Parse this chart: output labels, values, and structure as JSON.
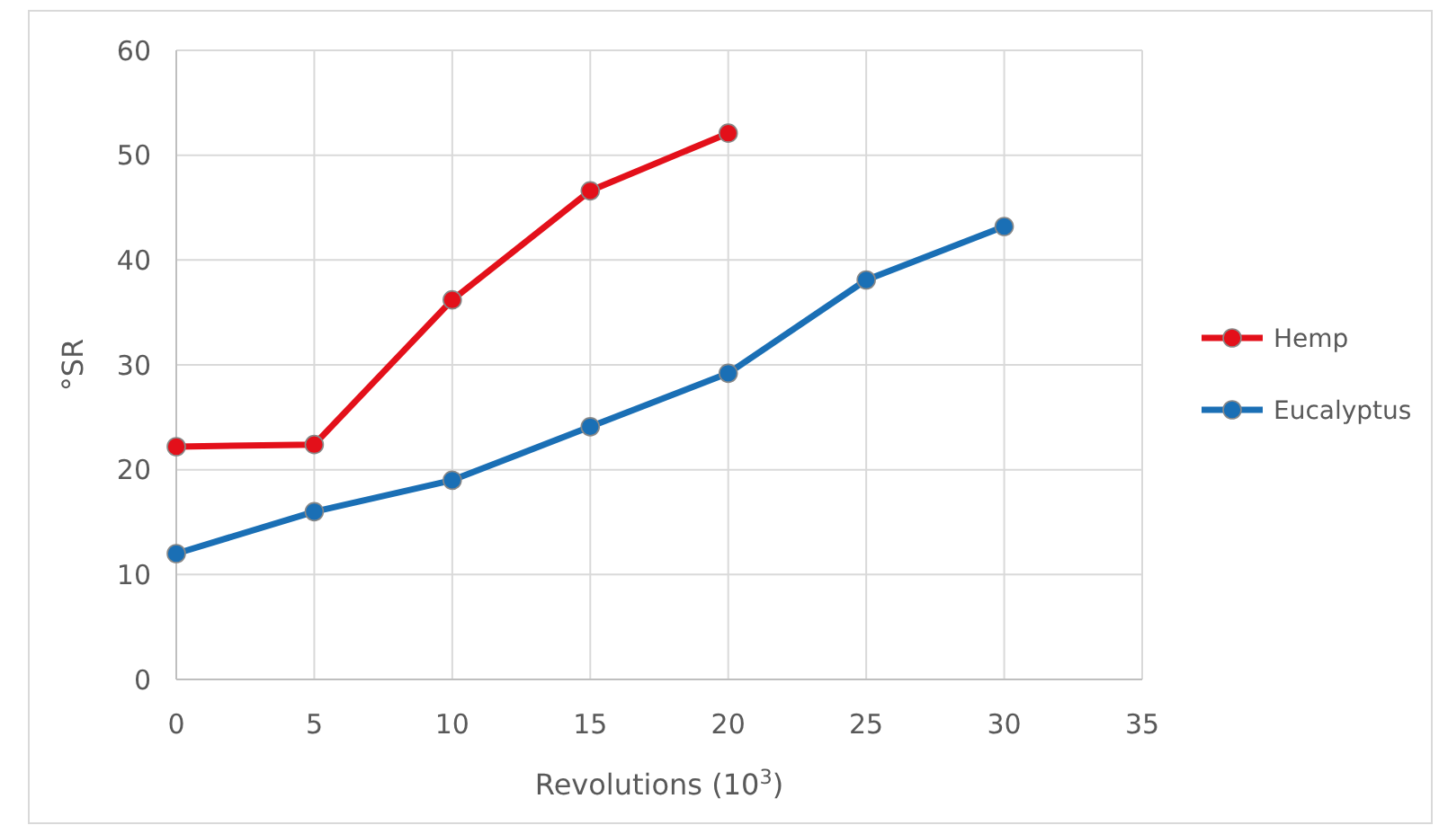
{
  "chart_data": {
    "type": "line",
    "xlabel": "Revolutions (10$^{3}$)",
    "ylabel": "°SR",
    "xlim": [
      0,
      35
    ],
    "xticks": [
      0,
      5,
      10,
      15,
      20,
      25,
      30,
      35
    ],
    "ylim": [
      0,
      60
    ],
    "yticks": [
      0,
      10,
      20,
      30,
      40,
      50,
      60
    ],
    "grid": true,
    "legend": "right",
    "marker": "circle",
    "line_style": "solid",
    "series": [
      {
        "name": "Hemp",
        "color": "#e3101a",
        "x": [
          0,
          5,
          10,
          15,
          20
        ],
        "values": [
          22.2,
          22.4,
          36.2,
          46.6,
          52.1
        ]
      },
      {
        "name": "Eucalyptus",
        "color": "#1a6fb5",
        "x": [
          0,
          5,
          10,
          15,
          20,
          25,
          30
        ],
        "values": [
          12,
          16,
          19,
          24.1,
          29.2,
          38.1,
          43.2
        ]
      }
    ]
  }
}
